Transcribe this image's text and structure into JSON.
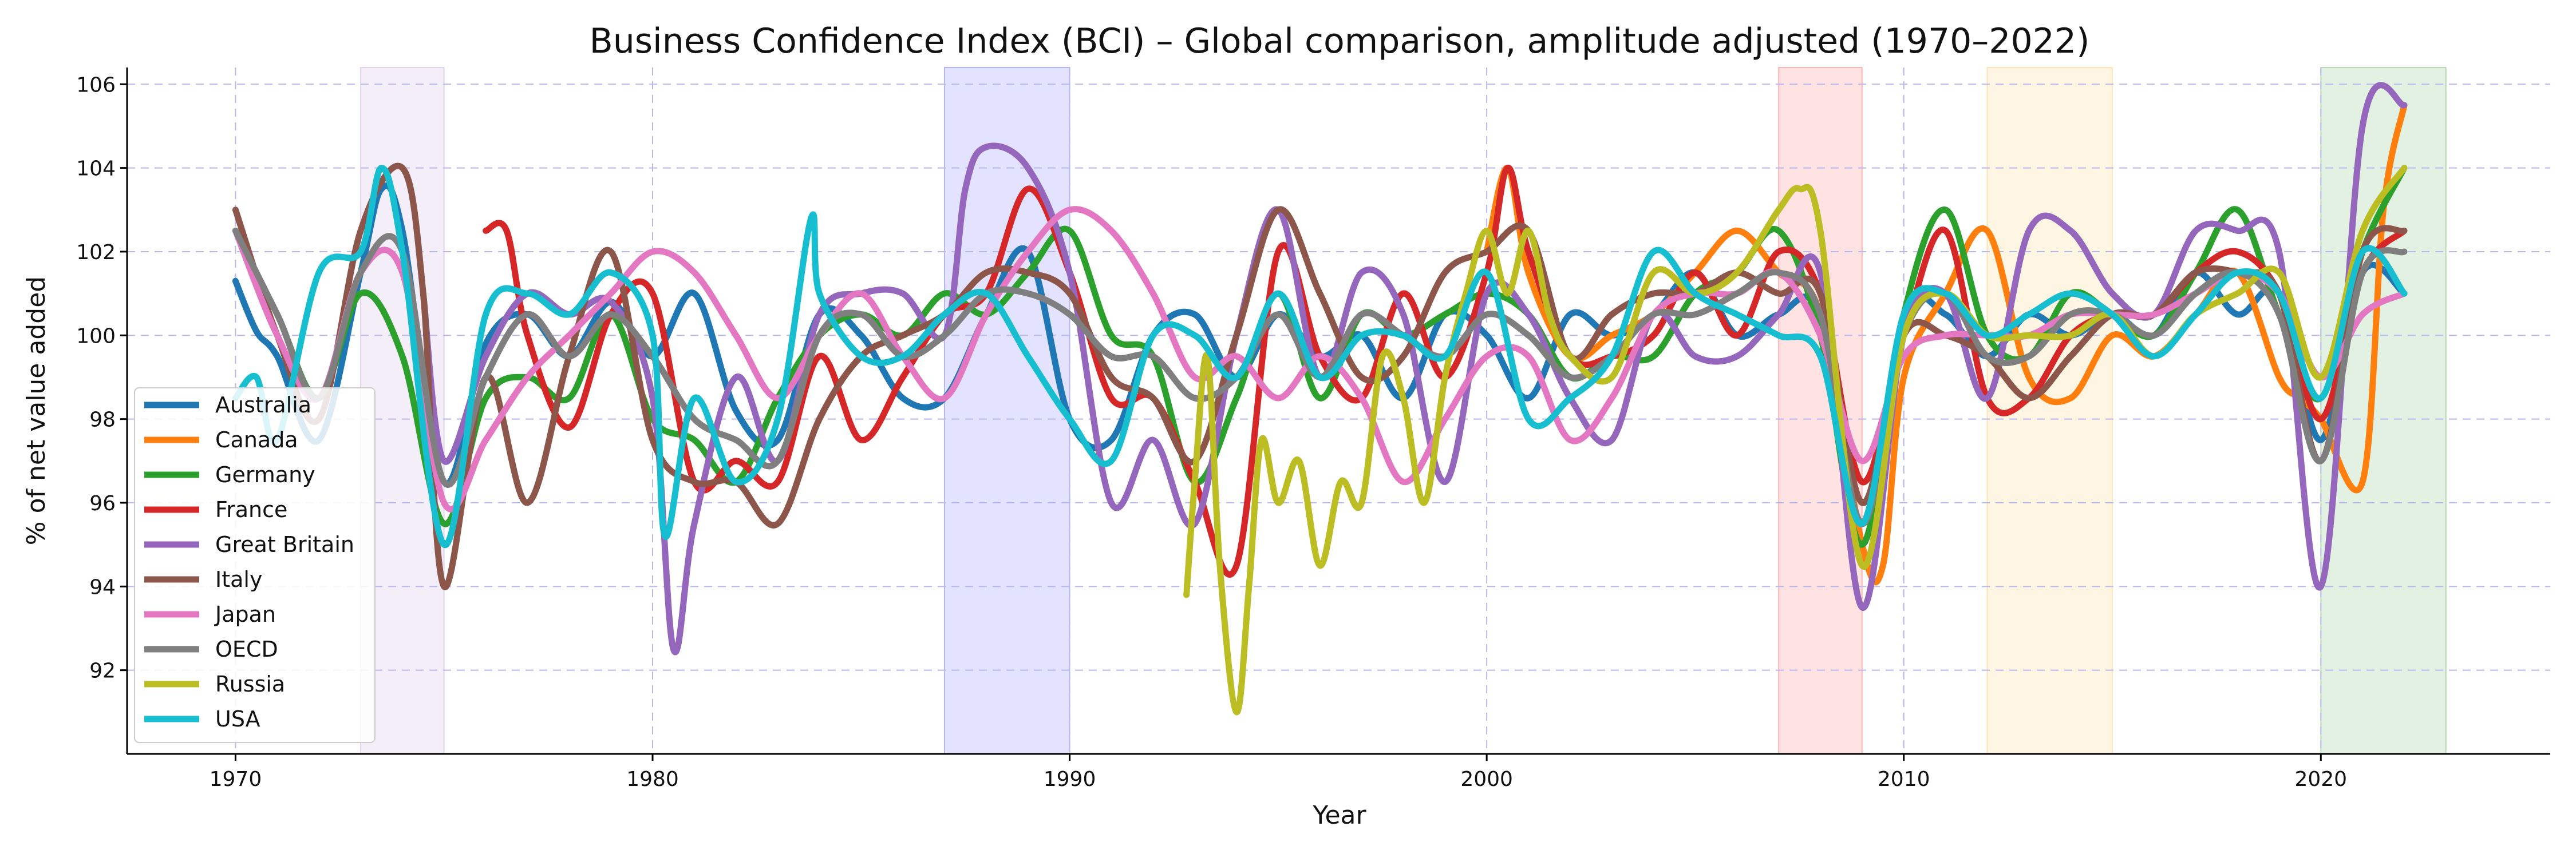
{
  "chart_data": {
    "type": "line",
    "title": "Business Confidence Index (BCI) – Global comparison, amplitude adjusted (1970–2022)",
    "xlabel": "Year",
    "ylabel": "% of net value added",
    "xlim": [
      1967.4,
      2025.5
    ],
    "ylim": [
      90.0,
      106.4
    ],
    "x_ticks": [
      1970,
      1980,
      1990,
      2000,
      2010,
      2020
    ],
    "y_ticks": [
      92,
      94,
      96,
      98,
      100,
      102,
      104,
      106
    ],
    "grid": true,
    "legend_position": "lower-left",
    "shaded_periods": [
      {
        "start": 1973.0,
        "end": 1975.0,
        "color": "#9467bd"
      },
      {
        "start": 1987.0,
        "end": 1990.0,
        "color": "#0000ff"
      },
      {
        "start": 2007.0,
        "end": 2009.0,
        "color": "#ff0000"
      },
      {
        "start": 2012.0,
        "end": 2015.0,
        "color": "#ffa500"
      },
      {
        "start": 2020.0,
        "end": 2023.0,
        "color": "#008000"
      }
    ],
    "series": [
      {
        "name": "Australia",
        "color": "#1f77b4",
        "x": [
          1970,
          1970.5,
          1971,
          1972,
          1973,
          1973.5,
          1974,
          1975,
          1976,
          1977,
          1978,
          1979,
          1980,
          1981,
          1982,
          1983,
          1984,
          1985,
          1986,
          1987,
          1988,
          1989,
          1990,
          1991,
          1992,
          1993,
          1994,
          1995,
          1996,
          1997,
          1998,
          1999,
          2000,
          2001,
          2002,
          2003,
          2004,
          2005,
          2006,
          2007,
          2008,
          2009,
          2010,
          2011,
          2012,
          2013,
          2014,
          2015,
          2016,
          2017,
          2018,
          2019,
          2020,
          2021,
          2022
        ],
        "y": [
          101.3,
          100.1,
          99.5,
          97.5,
          101.5,
          103.5,
          102.5,
          96.5,
          99.8,
          100.5,
          99.5,
          100.8,
          99.5,
          101.0,
          98.2,
          97.5,
          100.5,
          100.0,
          98.5,
          98.5,
          100.5,
          102.0,
          98.0,
          97.5,
          100.0,
          100.5,
          99.0,
          100.5,
          99.5,
          100.0,
          98.5,
          100.5,
          100.0,
          98.5,
          100.5,
          100.0,
          100.5,
          101.5,
          100.0,
          100.5,
          100.5,
          95.0,
          100.5,
          100.5,
          99.5,
          100.5,
          100.0,
          100.5,
          100.0,
          101.5,
          100.5,
          101.0,
          97.5,
          101.5,
          101.0
        ]
      },
      {
        "name": "Canada",
        "color": "#ff7f0e",
        "x": [
          2000,
          2000.5,
          2001,
          2002,
          2003,
          2004,
          2005,
          2006,
          2007,
          2008,
          2009,
          2009.5,
          2010,
          2011,
          2012,
          2013,
          2014,
          2015,
          2016,
          2017,
          2018,
          2019,
          2019.5,
          2020,
          2021,
          2021.5,
          2022
        ],
        "y": [
          102.0,
          104.0,
          101.5,
          99.5,
          100.0,
          100.5,
          101.5,
          102.5,
          101.5,
          100.5,
          95.0,
          94.5,
          99.0,
          101.0,
          102.5,
          99.0,
          98.5,
          100.0,
          99.5,
          100.5,
          101.5,
          99.0,
          98.5,
          98.0,
          96.5,
          103.0,
          105.5
        ]
      },
      {
        "name": "Germany",
        "color": "#2ca02c",
        "x": [
          1970,
          1971,
          1972,
          1973,
          1974,
          1975,
          1976,
          1977,
          1978,
          1979,
          1980,
          1981,
          1982,
          1983,
          1984,
          1985,
          1986,
          1987,
          1988,
          1989,
          1990,
          1991,
          1992,
          1993,
          1994,
          1995,
          1996,
          1997,
          1998,
          1999,
          2000,
          2001,
          2002,
          2003,
          2004,
          2005,
          2006,
          2007,
          2008,
          2009,
          2010,
          2011,
          2012,
          2013,
          2014,
          2015,
          2016,
          2017,
          2018,
          2019,
          2020,
          2021,
          2022
        ],
        "y": [
          102.5,
          100.5,
          98.5,
          101.0,
          99.5,
          95.5,
          98.5,
          99.0,
          98.5,
          100.5,
          98.0,
          97.5,
          96.5,
          98.5,
          100.0,
          100.5,
          100.0,
          101.0,
          100.5,
          101.5,
          102.5,
          100.0,
          99.5,
          96.5,
          98.5,
          101.0,
          98.5,
          100.5,
          100.0,
          100.5,
          101.0,
          100.5,
          99.0,
          99.5,
          99.5,
          101.0,
          101.5,
          102.5,
          100.0,
          95.0,
          100.5,
          103.0,
          100.0,
          99.5,
          101.0,
          100.5,
          100.0,
          101.5,
          103.0,
          100.5,
          98.5,
          102.0,
          104.0
        ]
      },
      {
        "name": "France",
        "color": "#d62728",
        "x": [
          1976,
          1976.5,
          1977,
          1978,
          1979,
          1980,
          1981,
          1982,
          1983,
          1984,
          1985,
          1986,
          1987,
          1988,
          1989,
          1990,
          1991,
          1992,
          1993,
          1994,
          1995,
          1996,
          1997,
          1998,
          1999,
          2000,
          2000.5,
          2001,
          2002,
          2003,
          2004,
          2005,
          2006,
          2007,
          2008,
          2009,
          2010,
          2011,
          2012,
          2013,
          2014,
          2015,
          2016,
          2017,
          2018,
          2019,
          2020,
          2021,
          2022
        ],
        "y": [
          102.5,
          102.5,
          100.0,
          97.8,
          100.5,
          101.0,
          96.5,
          97.0,
          96.5,
          99.5,
          97.5,
          99.0,
          100.5,
          101.0,
          103.5,
          101.5,
          98.5,
          98.5,
          96.5,
          94.5,
          102.0,
          99.5,
          98.5,
          101.0,
          99.0,
          101.5,
          104.0,
          102.0,
          99.5,
          99.5,
          100.0,
          101.5,
          100.0,
          102.0,
          101.0,
          96.5,
          100.0,
          102.5,
          98.5,
          98.5,
          100.0,
          100.5,
          100.5,
          101.5,
          102.0,
          101.0,
          98.0,
          101.5,
          102.5
        ]
      },
      {
        "name": "Great Britain",
        "color": "#9467bd",
        "x": [
          1974.5,
          1975,
          1976,
          1977,
          1978,
          1979,
          1980,
          1980.5,
          1981,
          1982,
          1983,
          1984,
          1985,
          1986,
          1987,
          1987.5,
          1988,
          1989,
          1990,
          1991,
          1992,
          1993,
          1994,
          1995,
          1996,
          1997,
          1998,
          1999,
          2000,
          2001,
          2002,
          2003,
          2004,
          2005,
          2006,
          2007,
          2008,
          2009,
          2010,
          2011,
          2012,
          2013,
          2014,
          2015,
          2016,
          2017,
          2018,
          2019,
          2020,
          2021,
          2022
        ],
        "y": [
          101.0,
          97.0,
          99.5,
          101.0,
          100.5,
          100.8,
          98.5,
          92.5,
          95.5,
          99.0,
          97.0,
          100.5,
          101.0,
          101.0,
          100.0,
          103.5,
          104.5,
          104.0,
          101.5,
          96.0,
          97.5,
          95.5,
          100.0,
          103.0,
          99.0,
          101.5,
          100.5,
          96.5,
          101.0,
          100.5,
          98.5,
          97.5,
          100.5,
          99.5,
          99.5,
          100.5,
          101.5,
          93.5,
          100.0,
          101.0,
          98.5,
          102.5,
          102.5,
          101.0,
          100.5,
          102.5,
          102.5,
          102.0,
          94.0,
          105.0,
          105.5
        ]
      },
      {
        "name": "Italy",
        "color": "#8c564b",
        "x": [
          1970,
          1971,
          1972,
          1973,
          1974,
          1974.5,
          1975,
          1976,
          1977,
          1978,
          1979,
          1980,
          1981,
          1982,
          1983,
          1984,
          1985,
          1986,
          1987,
          1988,
          1989,
          1990,
          1991,
          1992,
          1993,
          1994,
          1995,
          1996,
          1997,
          1998,
          1999,
          2000,
          2001,
          2002,
          2003,
          2004,
          2005,
          2006,
          2007,
          2008,
          2009,
          2010,
          2011,
          2012,
          2013,
          2014,
          2015,
          2016,
          2017,
          2018,
          2019,
          2020,
          2021,
          2022
        ],
        "y": [
          103.0,
          100.0,
          98.0,
          102.5,
          104.0,
          101.0,
          94.0,
          99.0,
          96.0,
          99.5,
          102.0,
          97.5,
          96.5,
          96.5,
          95.5,
          98.0,
          99.5,
          100.0,
          100.5,
          101.5,
          101.5,
          101.0,
          99.0,
          98.5,
          97.0,
          100.0,
          103.0,
          101.0,
          99.0,
          99.5,
          101.5,
          102.0,
          102.5,
          99.5,
          100.5,
          101.0,
          101.0,
          101.5,
          101.0,
          101.0,
          96.0,
          100.0,
          100.0,
          99.5,
          98.5,
          99.5,
          100.5,
          100.5,
          101.5,
          101.5,
          101.0,
          97.0,
          102.0,
          102.5
        ]
      },
      {
        "name": "Japan",
        "color": "#e377c2",
        "x": [
          1970,
          1971,
          1972,
          1973,
          1974,
          1975,
          1976,
          1977,
          1978,
          1979,
          1980,
          1981,
          1982,
          1983,
          1984,
          1985,
          1986,
          1987,
          1988,
          1989,
          1990,
          1991,
          1992,
          1993,
          1994,
          1995,
          1996,
          1997,
          1998,
          1999,
          2000,
          2001,
          2002,
          2003,
          2004,
          2005,
          2006,
          2007,
          2008,
          2009,
          2010,
          2011,
          2012,
          2013,
          2014,
          2015,
          2016,
          2017,
          2018,
          2019,
          2020,
          2021,
          2022
        ],
        "y": [
          102.5,
          100.0,
          98.5,
          101.5,
          101.5,
          96.0,
          97.5,
          99.0,
          100.0,
          101.0,
          102.0,
          101.5,
          100.0,
          98.5,
          100.0,
          101.0,
          99.5,
          98.5,
          100.5,
          102.0,
          103.0,
          102.5,
          101.0,
          99.0,
          99.5,
          98.5,
          99.5,
          98.5,
          96.5,
          98.0,
          99.5,
          99.5,
          97.5,
          98.5,
          100.5,
          101.0,
          101.0,
          101.5,
          100.0,
          97.0,
          99.5,
          100.0,
          100.0,
          100.0,
          100.5,
          100.5,
          100.5,
          101.0,
          101.5,
          101.0,
          99.0,
          100.5,
          101.0
        ]
      },
      {
        "name": "OECD",
        "color": "#7f7f7f",
        "x": [
          1970,
          1971,
          1972,
          1973,
          1974,
          1975,
          1976,
          1977,
          1978,
          1979,
          1980,
          1981,
          1982,
          1983,
          1984,
          1985,
          1986,
          1987,
          1988,
          1989,
          1990,
          1991,
          1992,
          1993,
          1994,
          1995,
          1996,
          1997,
          1998,
          1999,
          2000,
          2001,
          2002,
          2003,
          2004,
          2005,
          2006,
          2007,
          2008,
          2009,
          2010,
          2011,
          2012,
          2013,
          2014,
          2015,
          2016,
          2017,
          2018,
          2019,
          2020,
          2021,
          2022
        ],
        "y": [
          102.5,
          100.5,
          98.5,
          101.5,
          102.0,
          96.5,
          99.0,
          100.5,
          99.5,
          100.5,
          99.5,
          98.0,
          97.5,
          97.0,
          100.0,
          100.5,
          99.5,
          100.0,
          101.0,
          101.0,
          100.5,
          99.5,
          99.5,
          98.5,
          99.0,
          100.5,
          99.0,
          100.5,
          100.0,
          99.5,
          100.5,
          100.0,
          99.0,
          99.5,
          100.5,
          100.5,
          101.0,
          101.5,
          100.5,
          95.5,
          100.0,
          101.0,
          99.5,
          99.5,
          100.5,
          100.5,
          100.0,
          101.0,
          101.5,
          100.5,
          97.0,
          101.5,
          102.0
        ]
      },
      {
        "name": "Russia",
        "color": "#bcbd22",
        "x": [
          1992.8,
          1993.0,
          1993.3,
          1993.6,
          1994,
          1994.3,
          1994.6,
          1995,
          1995.5,
          1996,
          1996.5,
          1997,
          1997.5,
          1998,
          1998.5,
          1999,
          1999.5,
          2000,
          2000.5,
          2001,
          2001.5,
          2002,
          2003,
          2004,
          2005,
          2006,
          2007,
          2007.5,
          2008,
          2009,
          2010,
          2011,
          2012,
          2013,
          2014,
          2015,
          2016,
          2017,
          2018,
          2019,
          2020,
          2021,
          2022
        ],
        "y": [
          93.8,
          96.5,
          99.5,
          94.5,
          91.0,
          94.0,
          97.5,
          96.0,
          97.0,
          94.5,
          96.5,
          96.0,
          99.5,
          98.5,
          96.0,
          99.0,
          101.0,
          102.5,
          101.0,
          102.5,
          100.5,
          99.5,
          99.0,
          101.5,
          101.0,
          101.5,
          103.0,
          103.5,
          102.5,
          94.5,
          100.0,
          101.0,
          100.0,
          100.0,
          100.0,
          100.5,
          99.5,
          100.5,
          101.0,
          101.5,
          99.0,
          102.5,
          104.0
        ]
      },
      {
        "name": "USA",
        "color": "#17becf",
        "x": [
          1970,
          1970.5,
          1971,
          1972,
          1973,
          1973.5,
          1974,
          1975,
          1976,
          1977,
          1978,
          1979,
          1980,
          1980.3,
          1981,
          1982,
          1983,
          1983.8,
          1984,
          1985,
          1986,
          1987,
          1988,
          1989,
          1990,
          1991,
          1992,
          1993,
          1994,
          1995,
          1996,
          1997,
          1998,
          1999,
          2000,
          2001,
          2002,
          2003,
          2004,
          2005,
          2006,
          2007,
          2008,
          2009,
          2010,
          2011,
          2012,
          2013,
          2014,
          2015,
          2016,
          2017,
          2018,
          2019,
          2020,
          2021,
          2022
        ],
        "y": [
          98.5,
          99.0,
          97.5,
          101.5,
          102.0,
          104.0,
          102.0,
          95.0,
          100.5,
          101.0,
          100.5,
          101.5,
          100.0,
          95.2,
          98.5,
          96.5,
          98.0,
          102.8,
          101.0,
          99.5,
          99.5,
          100.5,
          101.0,
          99.5,
          98.0,
          97.0,
          100.0,
          100.0,
          99.0,
          101.0,
          99.0,
          100.0,
          100.0,
          99.5,
          101.5,
          98.0,
          98.5,
          99.5,
          102.0,
          101.0,
          100.5,
          100.0,
          99.5,
          95.5,
          100.5,
          101.0,
          100.0,
          100.5,
          101.0,
          100.5,
          99.5,
          100.5,
          101.5,
          101.0,
          98.5,
          102.0,
          101.0
        ]
      }
    ]
  }
}
